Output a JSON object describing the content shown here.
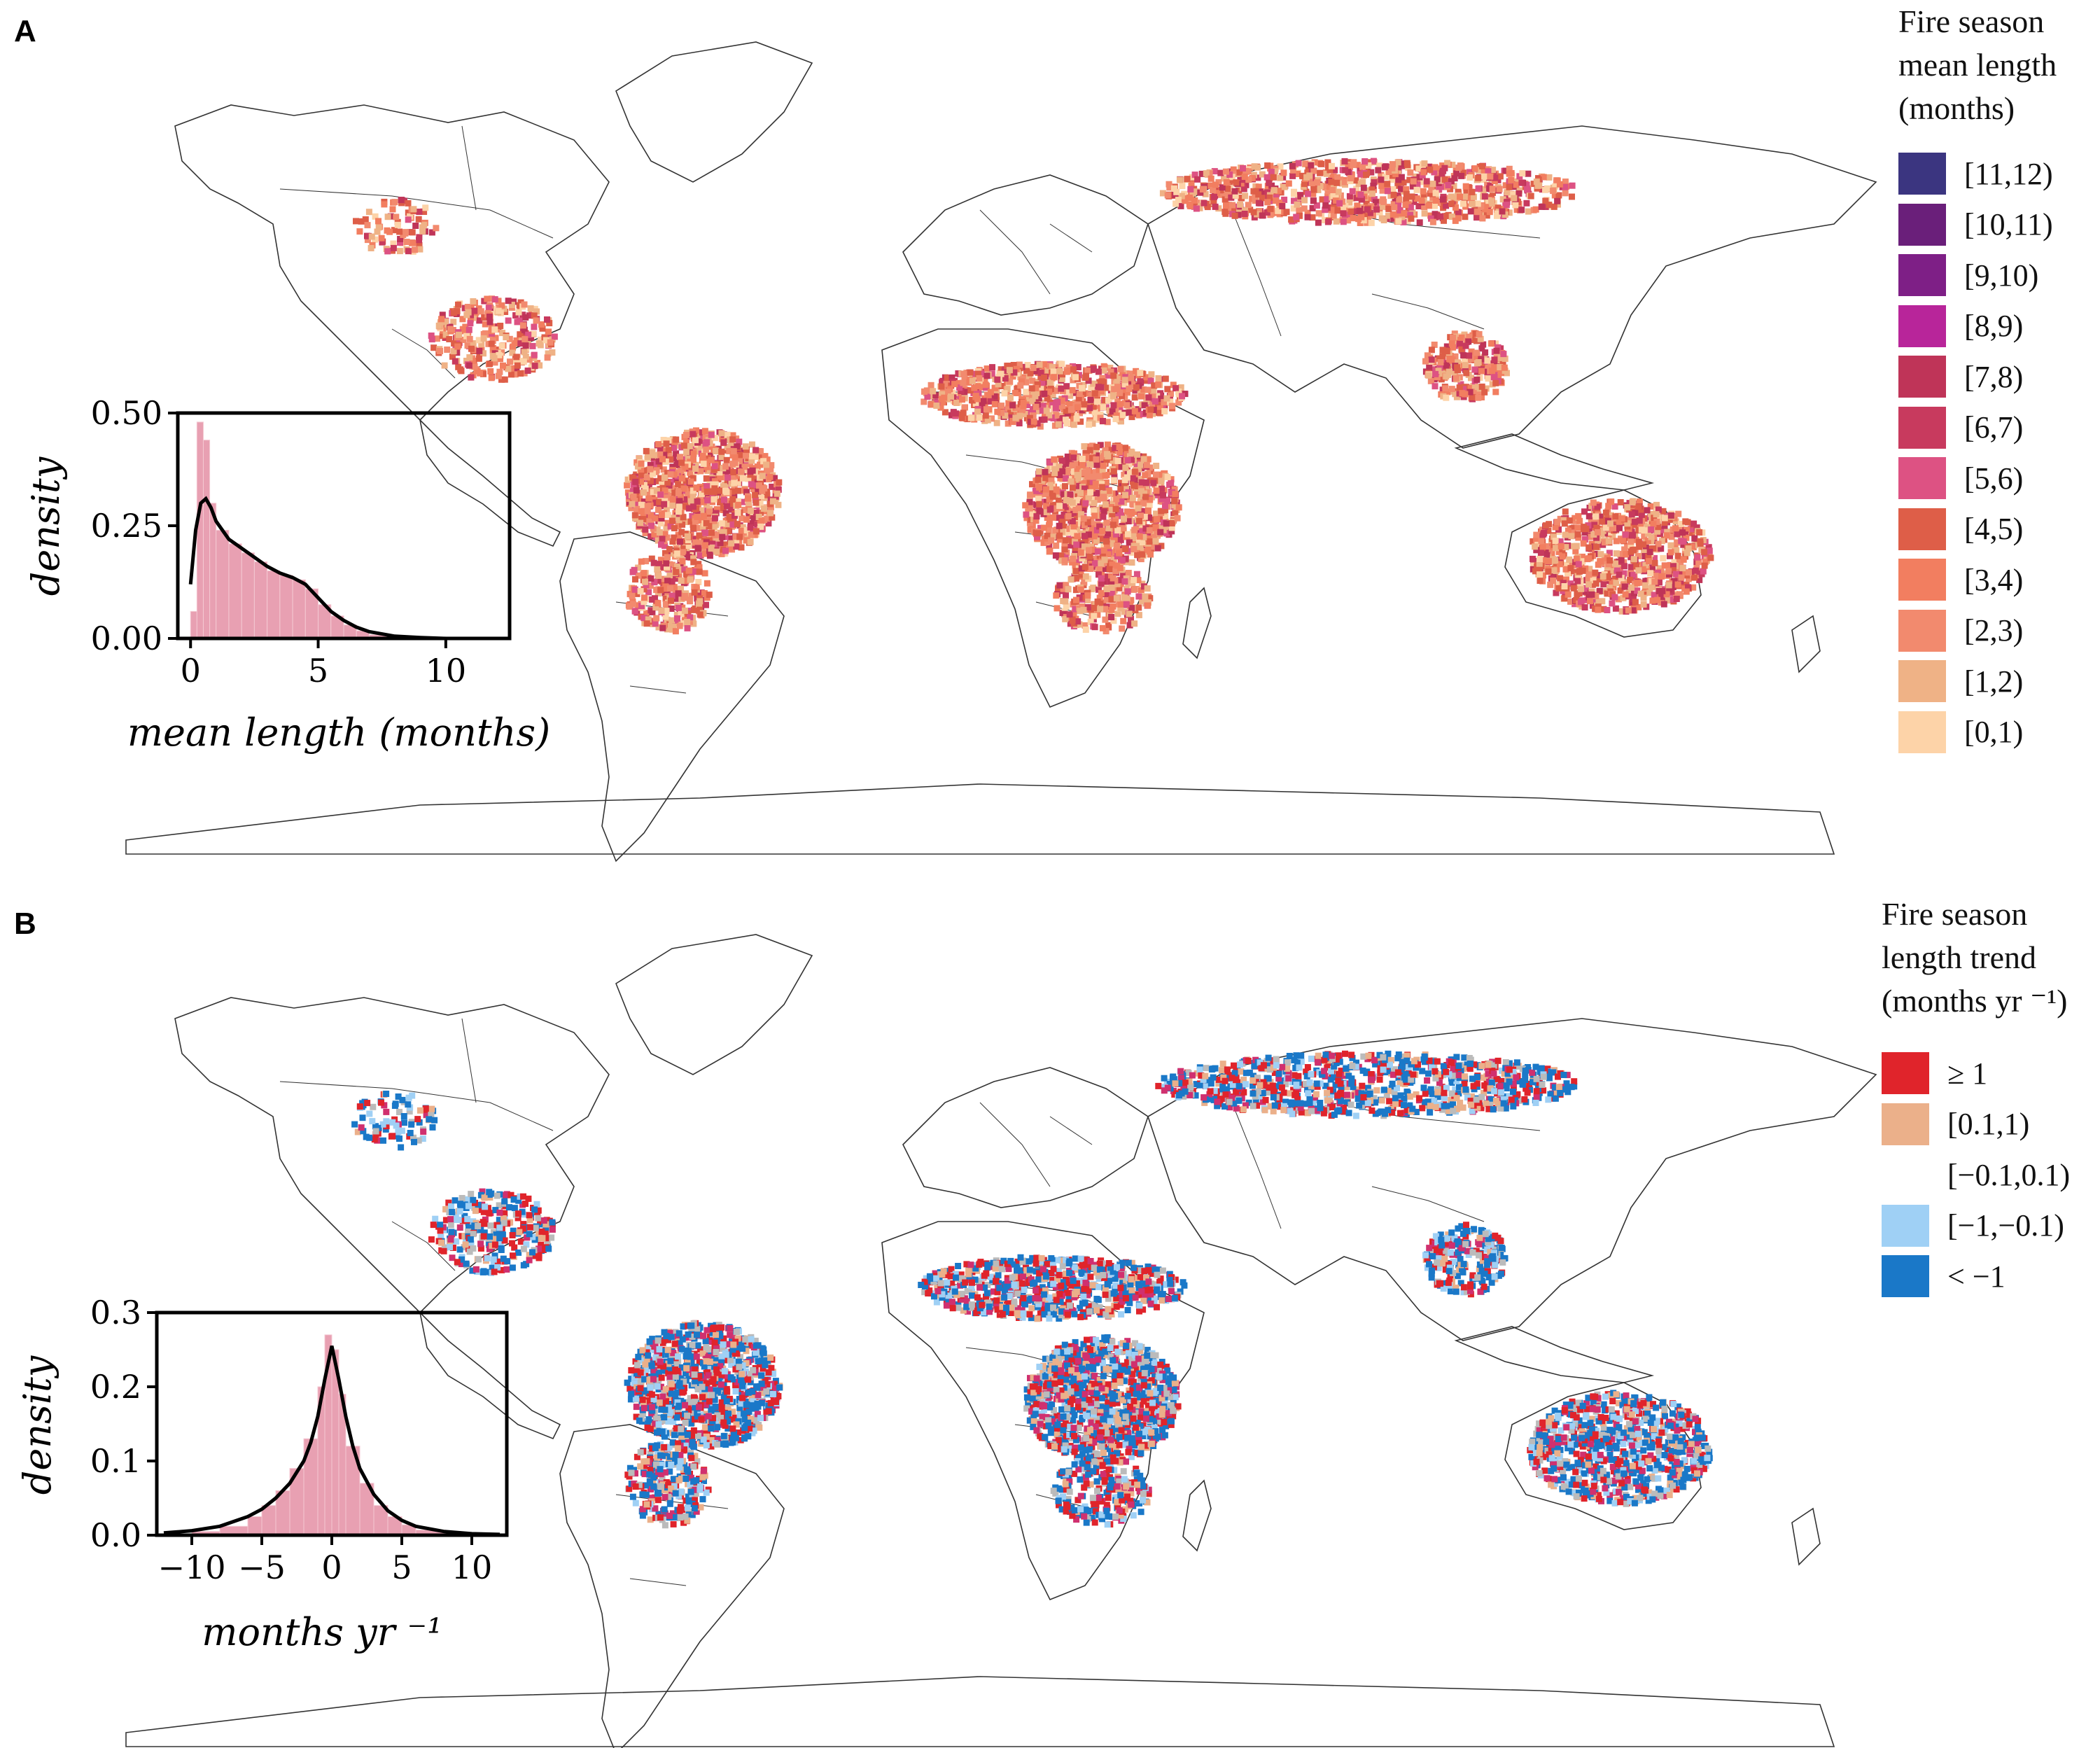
{
  "panel_a": {
    "letter": "A",
    "legend": {
      "title": [
        "Fire season",
        "mean length",
        "(months)"
      ],
      "items": [
        {
          "label": "[11,12)",
          "color": "#3b3580"
        },
        {
          "label": "[10,11)",
          "color": "#6a1f7a"
        },
        {
          "label": "[9,10)",
          "color": "#7e1f86"
        },
        {
          "label": "[8,9)",
          "color": "#b8259a"
        },
        {
          "label": "[7,8)",
          "color": "#bf3458"
        },
        {
          "label": "[6,7)",
          "color": "#c83a5e"
        },
        {
          "label": "[5,6)",
          "color": "#dd5283"
        },
        {
          "label": "[4,5)",
          "color": "#de5e48"
        },
        {
          "label": "[3,4)",
          "color": "#f27e60"
        },
        {
          "label": "[2,3)",
          "color": "#f28a6e"
        },
        {
          "label": "[1,2)",
          "color": "#efb286"
        },
        {
          "label": "[0,1)",
          "color": "#fdd3a8"
        }
      ]
    }
  },
  "panel_b": {
    "letter": "B",
    "legend": {
      "title": [
        "Fire season",
        "length trend",
        "(months yr ⁻¹)"
      ],
      "items": [
        {
          "label": "≥ 1",
          "color": "#e0242b"
        },
        {
          "label": "[0.1,1)",
          "color": "#ebb08a"
        },
        {
          "label": "[−0.1,0.1)",
          "color": "#ffffff"
        },
        {
          "label": "[−1,−0.1)",
          "color": "#9fd0f5"
        },
        {
          "label": "< −1",
          "color": "#1a78c8"
        }
      ]
    }
  },
  "chart_data": [
    {
      "type": "histogram-density",
      "ylabel": "density",
      "xlabel": "mean length (months)",
      "x_ticks": [
        "0",
        "5",
        "10"
      ],
      "y_ticks": [
        "0.00",
        "0.25",
        "0.50"
      ],
      "xlim": [
        -0.5,
        12.5
      ],
      "ylim": [
        0,
        0.5
      ],
      "bins": [
        {
          "x0": 0.0,
          "x1": 0.25,
          "density": 0.06
        },
        {
          "x0": 0.25,
          "x1": 0.5,
          "density": 0.48
        },
        {
          "x0": 0.5,
          "x1": 0.75,
          "density": 0.44
        },
        {
          "x0": 0.75,
          "x1": 1.0,
          "density": 0.3
        },
        {
          "x0": 1.0,
          "x1": 1.5,
          "density": 0.24
        },
        {
          "x0": 1.5,
          "x1": 2.0,
          "density": 0.21
        },
        {
          "x0": 2.0,
          "x1": 2.5,
          "density": 0.19
        },
        {
          "x0": 2.5,
          "x1": 3.0,
          "density": 0.17
        },
        {
          "x0": 3.0,
          "x1": 3.5,
          "density": 0.15
        },
        {
          "x0": 3.5,
          "x1": 4.0,
          "density": 0.14
        },
        {
          "x0": 4.0,
          "x1": 4.5,
          "density": 0.13
        },
        {
          "x0": 4.5,
          "x1": 5.0,
          "density": 0.11
        },
        {
          "x0": 5.0,
          "x1": 5.5,
          "density": 0.075
        },
        {
          "x0": 5.5,
          "x1": 6.0,
          "density": 0.05
        },
        {
          "x0": 6.0,
          "x1": 6.5,
          "density": 0.03
        },
        {
          "x0": 6.5,
          "x1": 7.0,
          "density": 0.017
        },
        {
          "x0": 7.0,
          "x1": 8.0,
          "density": 0.008
        },
        {
          "x0": 8.0,
          "x1": 9.0,
          "density": 0.003
        }
      ],
      "kde": {
        "x": [
          0,
          0.2,
          0.4,
          0.6,
          0.8,
          1.0,
          1.5,
          2.0,
          2.5,
          3.0,
          3.5,
          4.0,
          4.5,
          5.0,
          5.5,
          6.0,
          6.5,
          7.0,
          8.0,
          9.0,
          10.0,
          12.0
        ],
        "y": [
          0.12,
          0.24,
          0.3,
          0.31,
          0.29,
          0.26,
          0.22,
          0.2,
          0.18,
          0.16,
          0.145,
          0.135,
          0.12,
          0.09,
          0.06,
          0.04,
          0.025,
          0.015,
          0.005,
          0.002,
          0.0,
          0.0
        ]
      },
      "bar_color": "#e8a0b2",
      "line_color": "#000000"
    },
    {
      "type": "histogram-density",
      "ylabel": "density",
      "xlabel": "months yr ⁻¹",
      "x_ticks": [
        "−10",
        "−5",
        "0",
        "5",
        "10"
      ],
      "y_ticks": [
        "0.0",
        "0.1",
        "0.2",
        "0.3"
      ],
      "xlim": [
        -12.5,
        12.5
      ],
      "ylim": [
        0,
        0.3
      ],
      "bins": [
        {
          "x0": -10,
          "x1": -8,
          "density": 0.005
        },
        {
          "x0": -8,
          "x1": -6,
          "density": 0.012
        },
        {
          "x0": -6,
          "x1": -5,
          "density": 0.025
        },
        {
          "x0": -5,
          "x1": -4,
          "density": 0.04
        },
        {
          "x0": -4,
          "x1": -3,
          "density": 0.06
        },
        {
          "x0": -3,
          "x1": -2,
          "density": 0.09
        },
        {
          "x0": -2,
          "x1": -1,
          "density": 0.13
        },
        {
          "x0": -1,
          "x1": -0.5,
          "density": 0.2
        },
        {
          "x0": -0.5,
          "x1": 0,
          "density": 0.27
        },
        {
          "x0": 0,
          "x1": 0.5,
          "density": 0.25
        },
        {
          "x0": 0.5,
          "x1": 1,
          "density": 0.19
        },
        {
          "x0": 1,
          "x1": 2,
          "density": 0.12
        },
        {
          "x0": 2,
          "x1": 3,
          "density": 0.07
        },
        {
          "x0": 3,
          "x1": 4,
          "density": 0.04
        },
        {
          "x0": 4,
          "x1": 5,
          "density": 0.025
        },
        {
          "x0": 5,
          "x1": 6,
          "density": 0.014
        },
        {
          "x0": 6,
          "x1": 8,
          "density": 0.007
        },
        {
          "x0": 8,
          "x1": 10,
          "density": 0.003
        }
      ],
      "kde": {
        "x": [
          -12,
          -10,
          -8,
          -6,
          -5,
          -4,
          -3,
          -2,
          -1.5,
          -1,
          -0.5,
          0,
          0.5,
          1,
          1.5,
          2,
          3,
          4,
          5,
          6,
          8,
          10,
          12
        ],
        "y": [
          0.003,
          0.006,
          0.012,
          0.025,
          0.035,
          0.05,
          0.07,
          0.1,
          0.125,
          0.16,
          0.21,
          0.255,
          0.21,
          0.16,
          0.12,
          0.09,
          0.055,
          0.033,
          0.02,
          0.012,
          0.005,
          0.002,
          0.001
        ]
      },
      "bar_color": "#e8a0b2",
      "line_color": "#000000"
    }
  ]
}
